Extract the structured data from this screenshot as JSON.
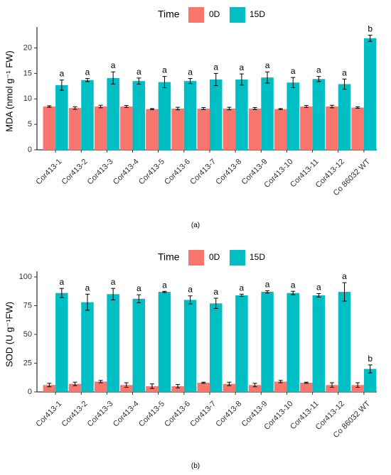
{
  "chart_data": [
    {
      "type": "bar",
      "panel_label": "(a)",
      "legend": {
        "title": "Time",
        "position": "top",
        "entries": [
          "0D",
          "15D"
        ]
      },
      "colors": {
        "0D": "#F8766D",
        "15D": "#00BFC4"
      },
      "ylabel": "MDA (nmol g⁻¹ FW)",
      "ylim": [
        0,
        23
      ],
      "yticks": [
        0,
        5,
        10,
        15,
        20
      ],
      "categories": [
        "Cor413-1",
        "Cor413-2",
        "Cor413-3",
        "Cor413-4",
        "Cor413-5",
        "Cor413-6",
        "Cor413-7",
        "Cor413-8",
        "Cor413-9",
        "Cor413-10",
        "Cor413-11",
        "Cor413-12",
        "Co 86032 WT"
      ],
      "series": [
        {
          "name": "0D",
          "values": [
            8.5,
            8.2,
            8.5,
            8.5,
            8.0,
            8.1,
            8.1,
            8.1,
            8.1,
            8.0,
            8.5,
            8.5,
            8.3
          ],
          "errors": [
            0.15,
            0.25,
            0.25,
            0.2,
            0.1,
            0.25,
            0.2,
            0.25,
            0.2,
            0.1,
            0.2,
            0.25,
            0.15
          ]
        },
        {
          "name": "15D",
          "values": [
            12.7,
            13.7,
            14.1,
            13.5,
            13.3,
            13.5,
            13.8,
            13.8,
            14.2,
            13.2,
            13.9,
            12.9,
            21.9
          ],
          "errors": [
            1.0,
            0.3,
            1.2,
            0.6,
            1.1,
            0.5,
            1.2,
            1.1,
            1.1,
            1.0,
            0.5,
            1.0,
            0.6
          ]
        }
      ],
      "significance": [
        "a",
        "a",
        "a",
        "a",
        "a",
        "a",
        "a",
        "a",
        "a",
        "a",
        "a",
        "a",
        "b"
      ]
    },
    {
      "type": "bar",
      "panel_label": "(b)",
      "legend": {
        "title": "Time",
        "position": "top",
        "entries": [
          "0D",
          "15D"
        ]
      },
      "colors": {
        "0D": "#F8766D",
        "15D": "#00BFC4"
      },
      "ylabel": "SOD (U g⁻¹FW)",
      "ylim": [
        0,
        100
      ],
      "yticks": [
        0,
        25,
        50,
        75,
        100
      ],
      "categories": [
        "Cor413-1",
        "Cor413-2",
        "Cor413-3",
        "Cor413-4",
        "Cor413-5",
        "Cor413-6",
        "Cor413-7",
        "Cor413-8",
        "Cor413-9",
        "Cor413-10",
        "Cor413-11",
        "Cor413-12",
        "Co 86032 WT"
      ],
      "series": [
        {
          "name": "0D",
          "values": [
            6.0,
            7.0,
            9.0,
            6.0,
            5.0,
            5.0,
            8.0,
            7.0,
            6.0,
            9.0,
            8.0,
            6.0,
            6.0
          ],
          "errors": [
            1.5,
            1.5,
            1.0,
            2.0,
            2.0,
            1.5,
            0.5,
            1.5,
            1.5,
            1.0,
            0.5,
            2.0,
            2.0
          ]
        },
        {
          "name": "15D",
          "values": [
            86,
            78,
            85,
            81,
            87,
            80,
            77,
            84,
            87,
            86,
            84,
            87,
            20
          ],
          "errors": [
            4.0,
            7.0,
            5.0,
            3.5,
            0.5,
            3.5,
            4.5,
            1.0,
            1.0,
            1.5,
            1.5,
            8.0,
            3.5
          ]
        }
      ],
      "significance": [
        "a",
        "a",
        "a",
        "a",
        "a",
        "a",
        "a",
        "a",
        "a",
        "a",
        "a",
        "a",
        "b"
      ]
    }
  ]
}
